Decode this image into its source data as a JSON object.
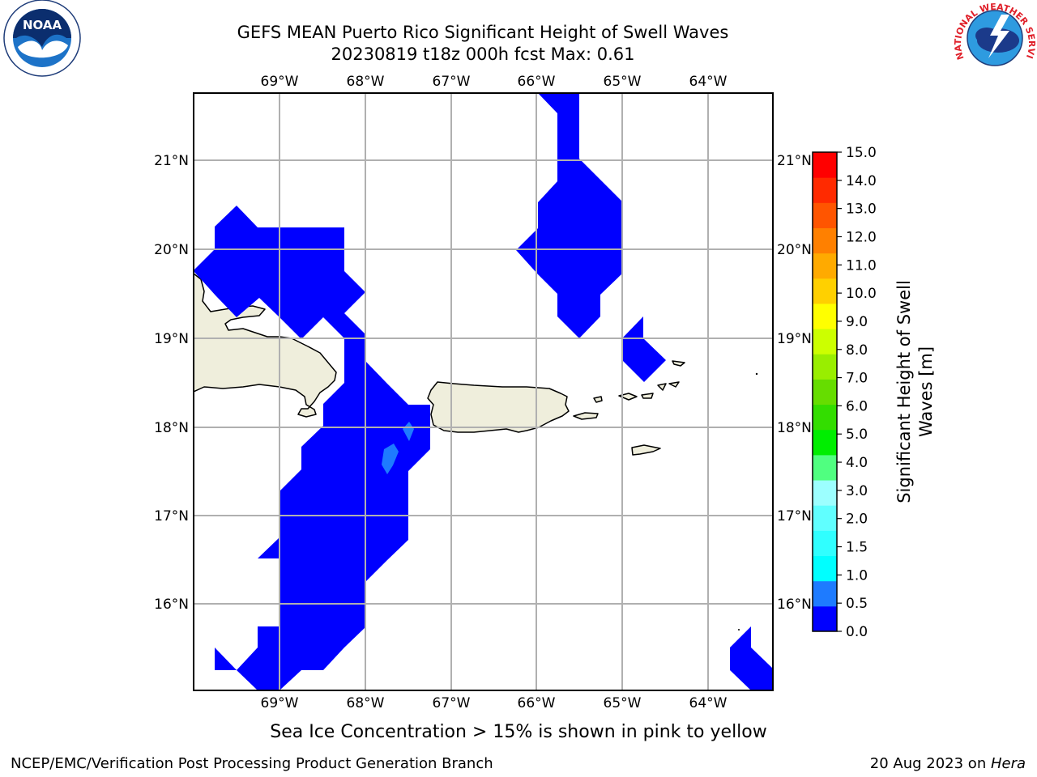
{
  "header": {
    "title_line1": "GEFS MEAN Puerto Rico Significant Height of Swell Waves",
    "title_line2": "20230819 t18z 000h fcst   Max: 0.61"
  },
  "logos": {
    "left": {
      "text": "NOAA",
      "ring_text": "NATIONAL OCEANIC AND ATMOSPHERIC ADMINISTRATION · U.S. DEPARTMENT OF COMMERCE"
    },
    "right": {
      "ring_text": "NATIONAL WEATHER SERVICE"
    }
  },
  "map": {
    "lon_ticks": [
      "69°W",
      "68°W",
      "67°W",
      "66°W",
      "65°W",
      "64°W"
    ],
    "lat_ticks": [
      "21°N",
      "20°N",
      "19°N",
      "18°N",
      "17°N",
      "16°N"
    ],
    "land_color": "#efeedc",
    "swell_color": "#0000ff",
    "swell_color_high": "#1e7bff",
    "grid_color": "#b0b0b0"
  },
  "colorbar": {
    "label_line1": "Significant Height of Swell",
    "label_line2": "Waves [m]",
    "ticks": [
      "15.0",
      "14.0",
      "13.0",
      "12.0",
      "11.0",
      "10.0",
      "9.0",
      "8.0",
      "7.0",
      "6.0",
      "5.0",
      "4.0",
      "3.0",
      "2.0",
      "1.5",
      "1.0",
      "0.5",
      "0.0"
    ],
    "colors": [
      "#0000ff",
      "#1e7bff",
      "#00ffff",
      "#30ffff",
      "#60ffff",
      "#9cffff",
      "#50ff80",
      "#00ee00",
      "#33dd00",
      "#66dd00",
      "#99ee00",
      "#ccff00",
      "#ffff00",
      "#ffd000",
      "#ffaa00",
      "#ff8000",
      "#ff5500",
      "#ff2a00",
      "#ff0000"
    ]
  },
  "note": "Sea Ice Concentration > 15% is shown in pink to yellow",
  "footer": {
    "left": "NCEP/EMC/Verification Post Processing Product Generation Branch",
    "right_prefix": "20 Aug 2023 on ",
    "right_machine": "Hera"
  }
}
